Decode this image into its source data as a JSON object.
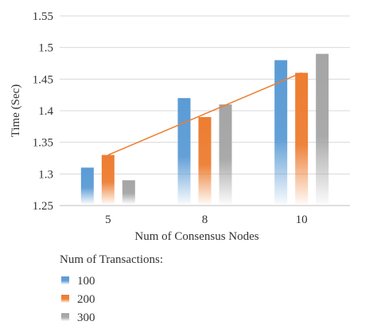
{
  "chart_data": {
    "type": "bar",
    "title": "",
    "xlabel": "Num of Consensus Nodes",
    "ylabel": "Time (Sec)",
    "ylim": [
      1.25,
      1.55
    ],
    "yticks": [
      1.25,
      1.3,
      1.35,
      1.4,
      1.45,
      1.5,
      1.55
    ],
    "ytick_labels": [
      "1.25",
      "1.3",
      "1.35",
      "1.4",
      "1.45",
      "1.5",
      "1.55"
    ],
    "grid": true,
    "categories": [
      "5",
      "8",
      "10"
    ],
    "series": [
      {
        "name": "100",
        "values": [
          1.31,
          1.42,
          1.48
        ],
        "color": "#5b9bd5"
      },
      {
        "name": "200",
        "values": [
          1.33,
          1.39,
          1.46
        ],
        "color": "#ed7d31"
      },
      {
        "name": "300",
        "values": [
          1.29,
          1.41,
          1.49
        ],
        "color": "#a5a5a5"
      }
    ],
    "trendline": {
      "series": "200",
      "color": "#ed7d31",
      "from_category": "5",
      "to_category": "10",
      "y_start": 1.33,
      "y_end": 1.46
    },
    "legend_title": "Num of Transactions:",
    "legend_position": "bottom-left"
  }
}
